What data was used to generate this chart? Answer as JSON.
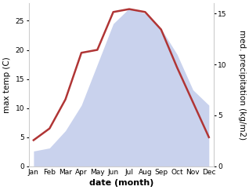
{
  "months": [
    "Jan",
    "Feb",
    "Mar",
    "Apr",
    "May",
    "Jun",
    "Jul",
    "Aug",
    "Sep",
    "Oct",
    "Nov",
    "Dec"
  ],
  "temp": [
    4.5,
    6.5,
    11.5,
    19.5,
    20.0,
    26.5,
    27.0,
    26.5,
    23.5,
    17.0,
    11.0,
    5.0
  ],
  "precip": [
    1.5,
    1.8,
    3.5,
    6.0,
    10.0,
    14.0,
    15.5,
    15.0,
    13.5,
    11.0,
    7.5,
    6.0
  ],
  "temp_color": "#b03535",
  "precip_fill_color": "#b8c4e8",
  "precip_fill_alpha": 0.75,
  "temp_ylim": [
    0,
    28
  ],
  "precip_ylim": [
    0,
    16
  ],
  "temp_yticks": [
    0,
    5,
    10,
    15,
    20,
    25
  ],
  "precip_yticks": [
    0,
    5,
    10,
    15
  ],
  "ylabel_left": "max temp (C)",
  "ylabel_right": "med. precipitation (kg/m2)",
  "xlabel": "date (month)",
  "bg_color": "#ffffff",
  "label_fontsize": 7.5,
  "tick_fontsize": 6.5,
  "xlabel_fontsize": 8,
  "linewidth": 1.8
}
